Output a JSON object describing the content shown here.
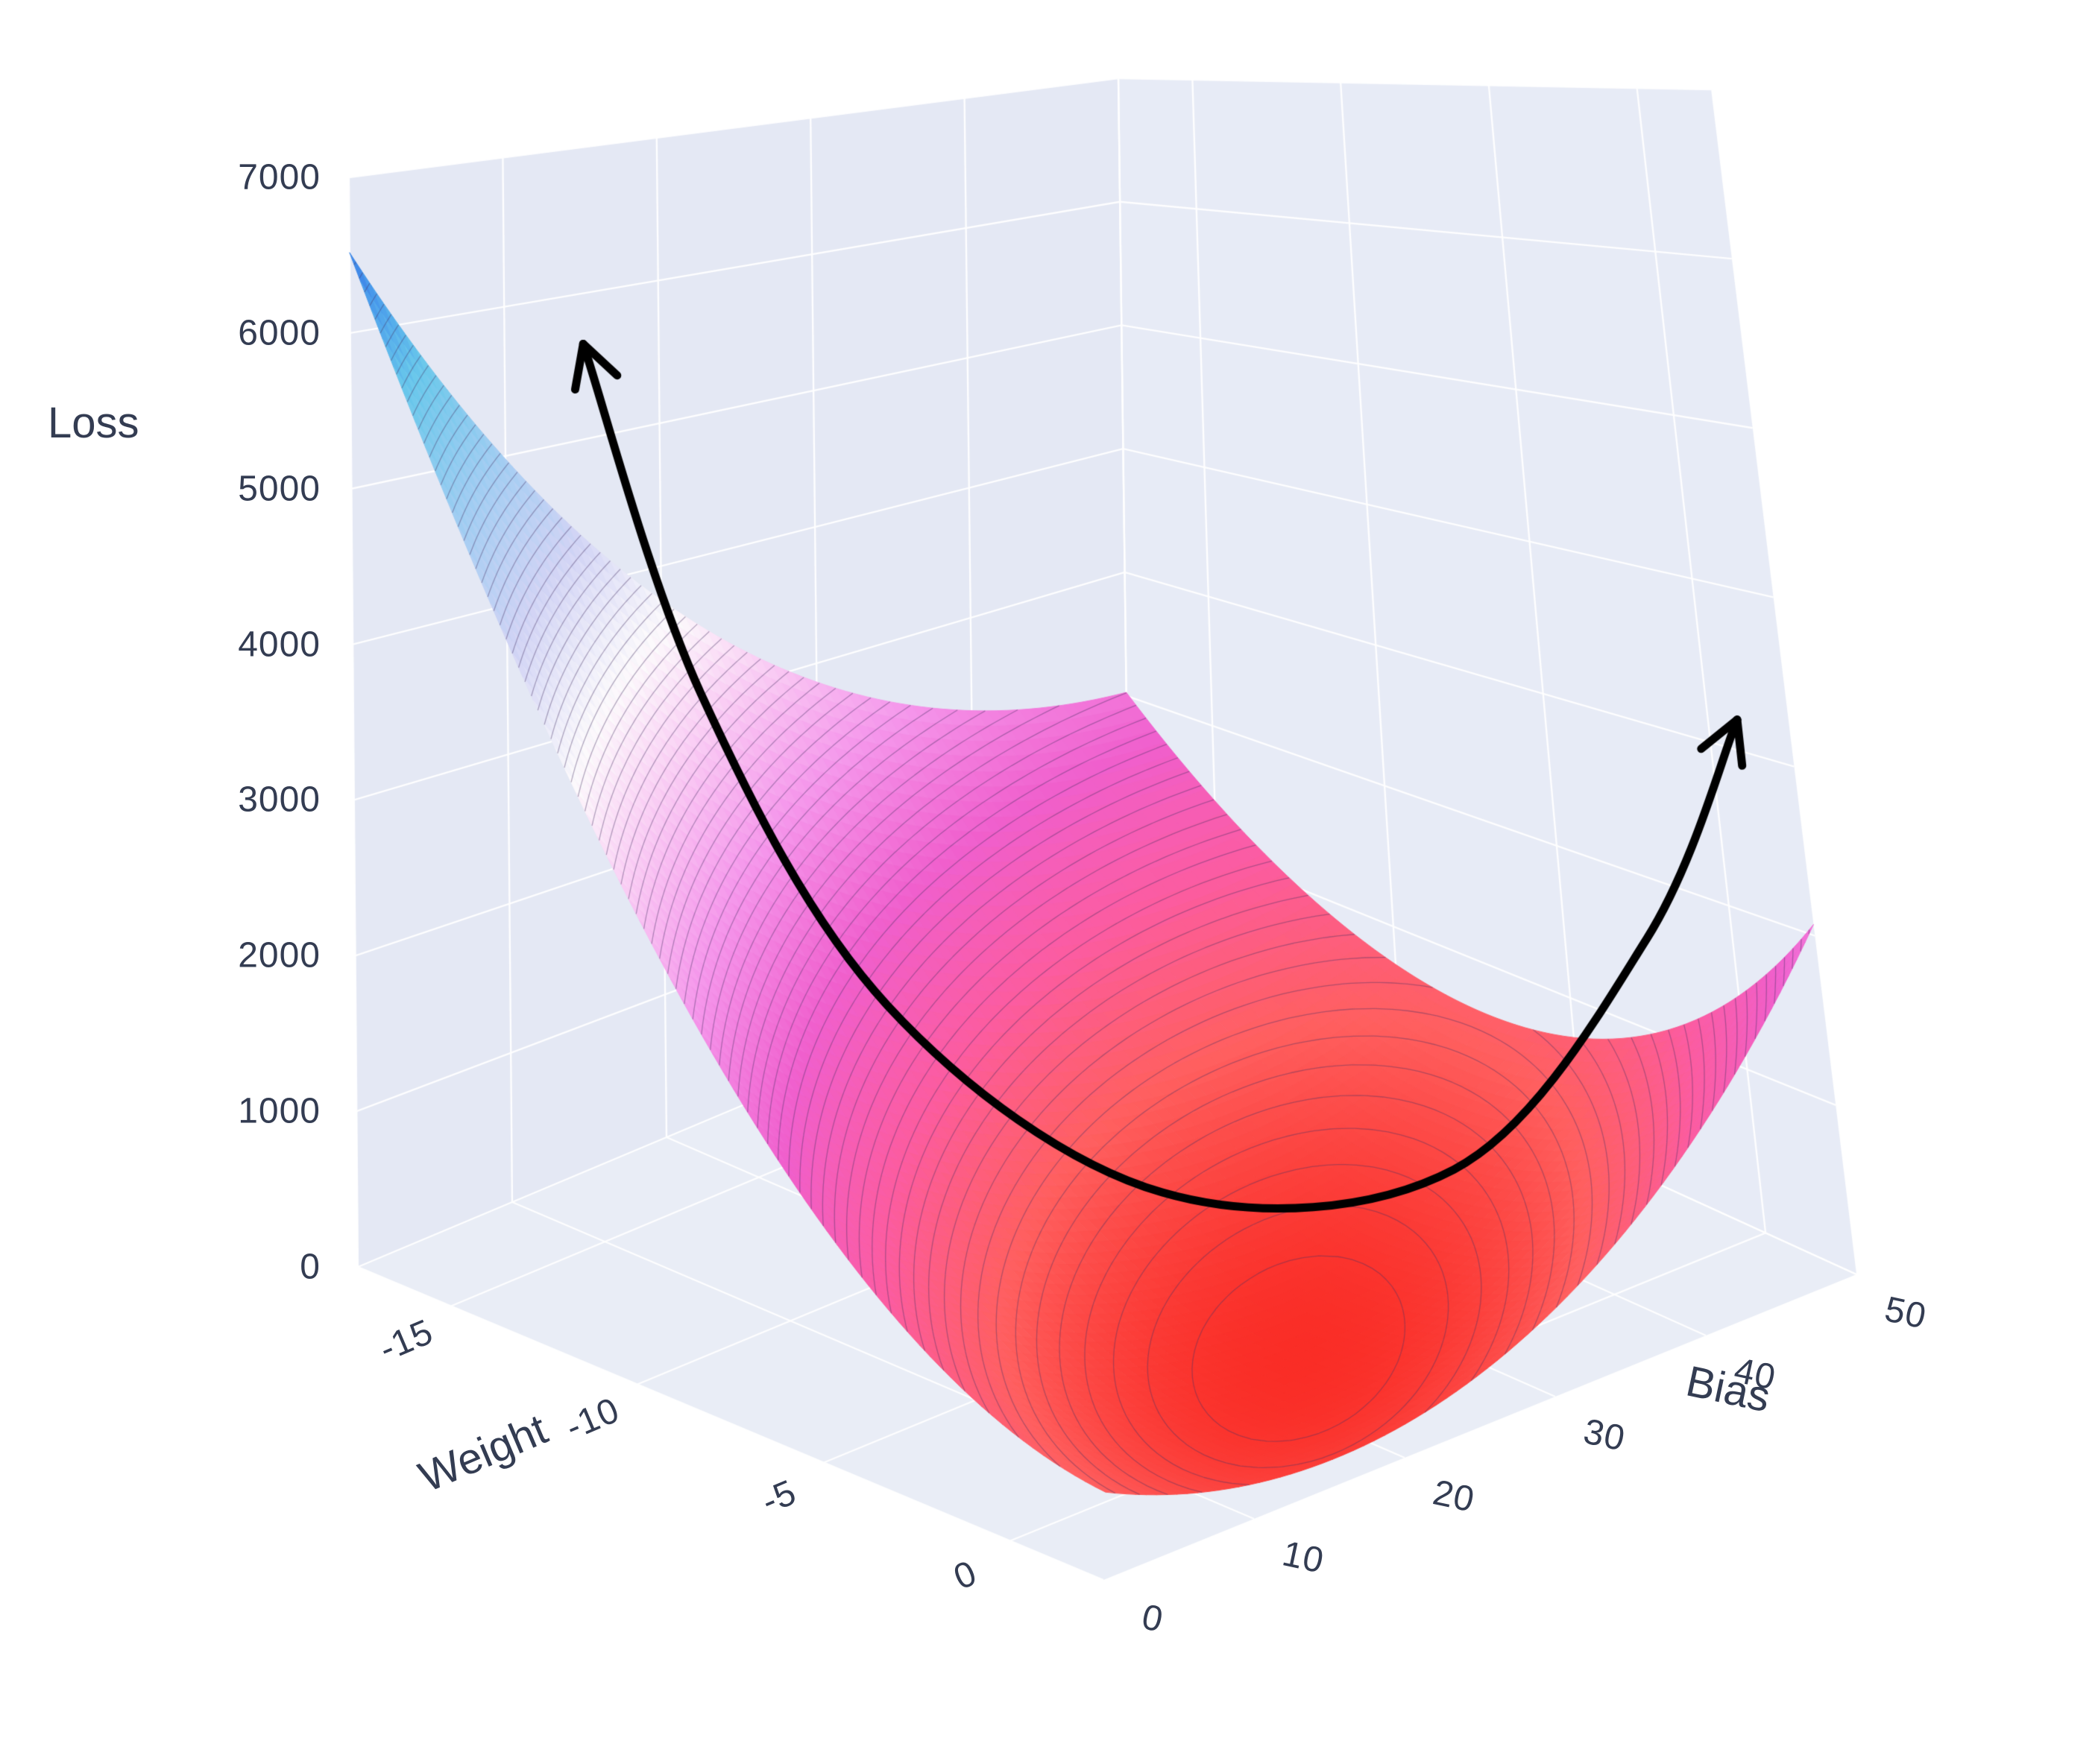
{
  "figure": {
    "type_note": "3D surface plot of a regression loss landscape with a curved valley arrow annotation",
    "background_color": "#ffffff"
  },
  "chart_data": {
    "type": "surface",
    "title": "",
    "axes": {
      "x": {
        "title": "Weight",
        "ticks": [
          -15,
          -10,
          -5,
          0
        ],
        "range": [
          -17.5,
          2.5
        ]
      },
      "y": {
        "title": "Bias",
        "ticks": [
          0,
          10,
          20,
          30,
          40,
          50
        ],
        "range": [
          0,
          50
        ]
      },
      "z": {
        "title": "Loss",
        "ticks": [
          0,
          1000,
          2000,
          3000,
          4000,
          5000,
          6000,
          7000
        ],
        "range": [
          0,
          7000
        ]
      }
    },
    "surface_model": {
      "formula": "loss(w,b) = a*(w-w0)^2 + c*(b-b0)^2 + d*(w-w0)*(b-b0), clamped to z range",
      "a": 14,
      "c": 1.6,
      "d": 6,
      "w0": -2,
      "b0": 24
    },
    "sample_grid": {
      "weight": [
        -17.5,
        -12.5,
        -7.5,
        -2.5,
        2.5
      ],
      "bias": [
        0,
        10,
        20,
        30,
        40,
        50
      ],
      "loss": [
        [
          6517,
          4979,
          3761,
          2863,
          2285,
          2027
        ],
        [
          3977,
          2739,
          1821,
          1223,
          945,
          987
        ],
        [
          2137,
          1199,
          581,
          283,
          305,
          647
        ],
        [
          997,
          359,
          41,
          43,
          365,
          1007
        ],
        [
          557,
          219,
          201,
          503,
          1125,
          2067
        ]
      ]
    },
    "colorscale": [
      {
        "t": 0.0,
        "rgb": [
          250,
          45,
          38
        ]
      },
      {
        "t": 0.08,
        "rgb": [
          255,
          95,
          95
        ]
      },
      {
        "t": 0.16,
        "rgb": [
          252,
          92,
          160
        ]
      },
      {
        "t": 0.25,
        "rgb": [
          240,
          95,
          205
        ]
      },
      {
        "t": 0.35,
        "rgb": [
          245,
          150,
          235
        ]
      },
      {
        "t": 0.45,
        "rgb": [
          250,
          210,
          245
        ]
      },
      {
        "t": 0.52,
        "rgb": [
          252,
          250,
          252
        ]
      },
      {
        "t": 0.62,
        "rgb": [
          210,
          212,
          245
        ]
      },
      {
        "t": 0.72,
        "rgb": [
          160,
          205,
          242
        ]
      },
      {
        "t": 0.82,
        "rgb": [
          105,
          200,
          235
        ]
      },
      {
        "t": 0.9,
        "rgb": [
          70,
          150,
          235
        ]
      },
      {
        "t": 1.0,
        "rgb": [
          30,
          40,
          205
        ]
      }
    ],
    "contours": {
      "show": true,
      "step": 75
    },
    "layout": {
      "wall_color": "#e4e8f4",
      "wall_color_right": "#e7ebf6",
      "floor_color": "#e9edf6",
      "grid_color": "#ffffff",
      "contour_color": "rgba(70,50,100,0.40)",
      "grid_on": true,
      "legend": "none"
    },
    "annotation_arrow": {
      "description": "curved double-headed arrow tracing the loss valley",
      "color": "#000000",
      "stroke_width": 11,
      "arrowheads": "both",
      "points_norm": [
        [
          0.278,
          0.195
        ],
        [
          0.334,
          0.393
        ],
        [
          0.423,
          0.57
        ],
        [
          0.554,
          0.676
        ],
        [
          0.693,
          0.663
        ],
        [
          0.785,
          0.532
        ],
        [
          0.828,
          0.408
        ]
      ]
    }
  }
}
